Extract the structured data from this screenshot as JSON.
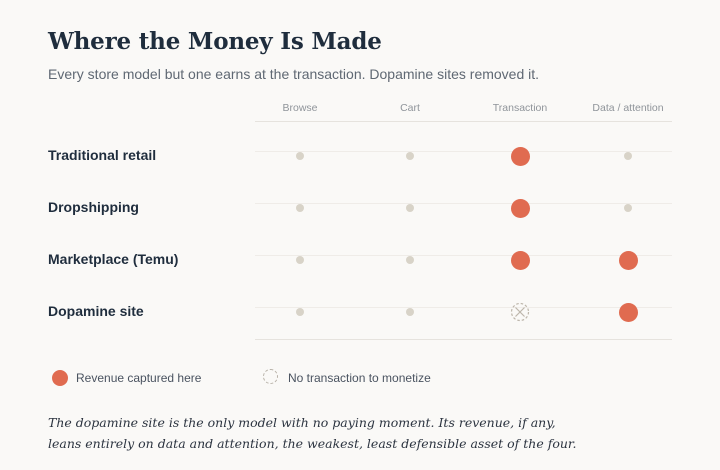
{
  "title": "Where the Money Is Made",
  "subtitle": "Every store model but one earns at the transaction. Dopamine sites removed it.",
  "columns": [
    "Browse",
    "Cart",
    "Transaction",
    "Data / attention"
  ],
  "rows": [
    {
      "label": "Traditional retail",
      "cells": [
        "none",
        "none",
        "revenue",
        "none"
      ]
    },
    {
      "label": "Dropshipping",
      "cells": [
        "none",
        "none",
        "revenue",
        "none"
      ]
    },
    {
      "label": "Marketplace (Temu)",
      "cells": [
        "none",
        "none",
        "revenue",
        "revenue"
      ]
    },
    {
      "label": "Dopamine site",
      "cells": [
        "none",
        "none",
        "no-transaction",
        "revenue"
      ]
    }
  ],
  "legend": {
    "revenue": "Revenue captured here",
    "no_transaction": "No transaction to monetize"
  },
  "note": {
    "line1": "The dopamine site is the only model with no paying moment. Its revenue, if any,",
    "line2": "leans entirely on data and attention, the weakest, least defensible asset of the four."
  },
  "colors": {
    "revenue": "#e06b50",
    "neutral": "#d8d3c8",
    "text": "#1f2d3d"
  }
}
